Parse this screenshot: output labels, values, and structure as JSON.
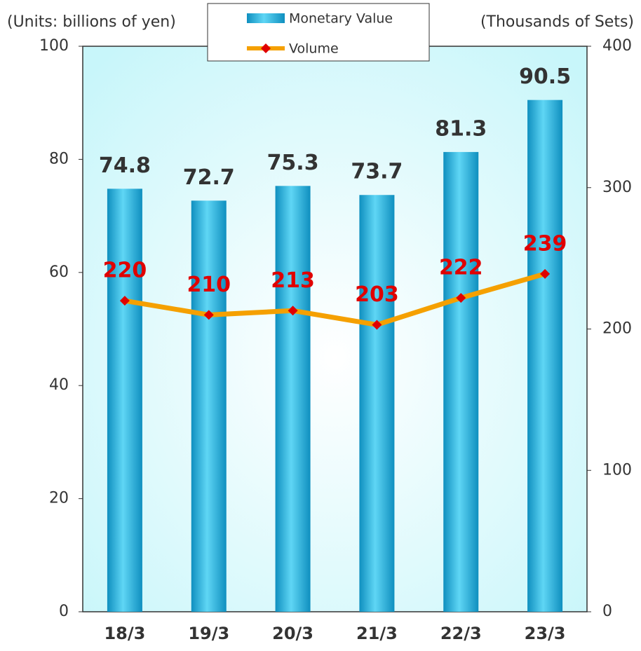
{
  "chart_data": {
    "type": "bar-line",
    "y_axis_label": "(Units: billions of yen)",
    "y2_axis_label": "(Thousands of Sets)",
    "categories": [
      "18/3",
      "19/3",
      "20/3",
      "21/3",
      "22/3",
      "23/3"
    ],
    "series": [
      {
        "name": "Monetary Value",
        "type": "bar",
        "color": "#1aa8d4",
        "values": [
          74.8,
          72.7,
          75.3,
          73.7,
          81.3,
          90.5
        ]
      },
      {
        "name": "Volume",
        "type": "line",
        "axis": "y2",
        "color": "#f5a000",
        "marker_color": "#e00000",
        "values": [
          220,
          210,
          213,
          203,
          222,
          239
        ]
      }
    ],
    "ylim": [
      0,
      100
    ],
    "yticks": [
      0,
      20,
      40,
      60,
      80,
      100
    ],
    "y2lim": [
      0,
      400
    ],
    "y2ticks": [
      0,
      100,
      200,
      300,
      400
    ],
    "legend": "top"
  }
}
